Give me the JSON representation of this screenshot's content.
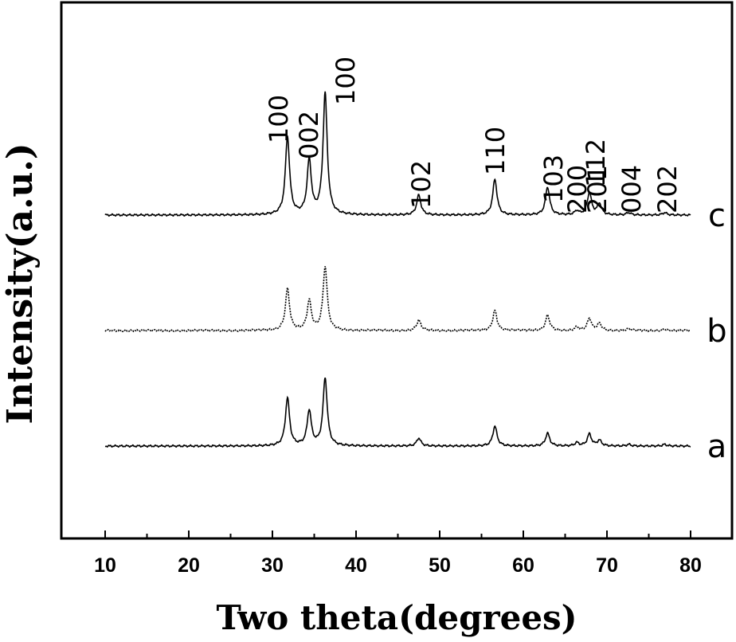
{
  "chart_data": {
    "type": "line",
    "title": "",
    "xlabel": "Two theta(degrees)",
    "ylabel": "Intensity(a.u.)",
    "xlim": [
      5,
      85
    ],
    "xticks": [
      10,
      20,
      30,
      40,
      50,
      60,
      70,
      80
    ],
    "x_tick_labels": [
      "10",
      "20",
      "30",
      "40",
      "50",
      "60",
      "70",
      "80"
    ],
    "y_ticks_shown": false,
    "grid": false,
    "legend": "none",
    "series": [
      {
        "label": "a",
        "line_style": "solid",
        "peaks": [
          {
            "x": 31.8,
            "h": 60
          },
          {
            "x": 34.4,
            "h": 44
          },
          {
            "x": 36.3,
            "h": 85
          },
          {
            "x": 47.5,
            "h": 10
          },
          {
            "x": 56.6,
            "h": 25
          },
          {
            "x": 62.9,
            "h": 16
          },
          {
            "x": 66.4,
            "h": 4
          },
          {
            "x": 67.9,
            "h": 15
          },
          {
            "x": 69.1,
            "h": 7
          },
          {
            "x": 72.6,
            "h": 2
          },
          {
            "x": 76.9,
            "h": 2
          }
        ]
      },
      {
        "label": "b",
        "line_style": "dotted",
        "peaks": [
          {
            "x": 31.8,
            "h": 52
          },
          {
            "x": 34.4,
            "h": 37
          },
          {
            "x": 36.3,
            "h": 80
          },
          {
            "x": 47.5,
            "h": 13
          },
          {
            "x": 56.6,
            "h": 25
          },
          {
            "x": 62.9,
            "h": 19
          },
          {
            "x": 66.4,
            "h": 4
          },
          {
            "x": 67.9,
            "h": 15
          },
          {
            "x": 69.1,
            "h": 9
          },
          {
            "x": 72.6,
            "h": 2
          },
          {
            "x": 76.9,
            "h": 2
          }
        ]
      },
      {
        "label": "c",
        "line_style": "solid",
        "peaks": [
          {
            "x": 31.8,
            "h": 98
          },
          {
            "x": 34.4,
            "h": 68
          },
          {
            "x": 36.3,
            "h": 152
          },
          {
            "x": 47.5,
            "h": 25
          },
          {
            "x": 56.6,
            "h": 45
          },
          {
            "x": 62.9,
            "h": 35
          },
          {
            "x": 66.4,
            "h": 5
          },
          {
            "x": 67.9,
            "h": 28
          },
          {
            "x": 69.1,
            "h": 14
          },
          {
            "x": 72.6,
            "h": 3
          },
          {
            "x": 76.9,
            "h": 3
          }
        ]
      }
    ],
    "annotations": [
      {
        "text": "100"
      },
      {
        "text": "002"
      },
      {
        "text": "100"
      },
      {
        "text": "102"
      },
      {
        "text": "110"
      },
      {
        "text": "103"
      },
      {
        "text": "200"
      },
      {
        "text": "112"
      },
      {
        "text": "201"
      },
      {
        "text": "004"
      },
      {
        "text": "202"
      }
    ]
  }
}
